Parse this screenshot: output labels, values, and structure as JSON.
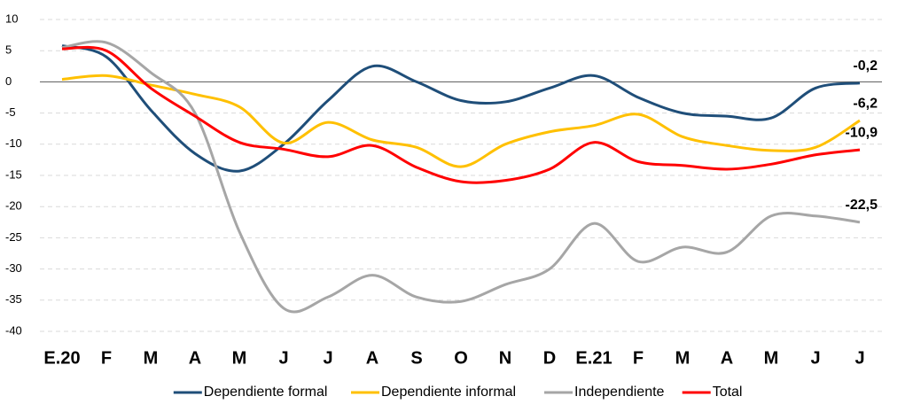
{
  "chart_data": {
    "type": "line",
    "categories": [
      "E.20",
      "F",
      "M",
      "A",
      "M",
      "J",
      "J",
      "A",
      "S",
      "O",
      "N",
      "D",
      "E.21",
      "F",
      "M",
      "A",
      "M",
      "J",
      "J"
    ],
    "series": [
      {
        "name": "Dependiente formal",
        "color": "#1f4e79",
        "values": [
          5.8,
          4,
          -4.5,
          -11.5,
          -14.3,
          -10,
          -3,
          2.5,
          0,
          -3,
          -3.2,
          -1,
          1,
          -2.5,
          -5,
          -5.5,
          -5.8,
          -1,
          -0.2
        ],
        "value_labels": [
          null,
          null,
          null,
          null,
          null,
          null,
          null,
          null,
          null,
          null,
          null,
          null,
          null,
          null,
          null,
          null,
          null,
          null,
          "-0,2"
        ]
      },
      {
        "name": "Dependiente informal",
        "color": "#ffc000",
        "values": [
          0.4,
          1,
          -0.5,
          -2,
          -4,
          -9.8,
          -6.5,
          -9.3,
          -10.5,
          -13.6,
          -10,
          -8,
          -7,
          -5.2,
          -8.8,
          -10.2,
          -11,
          -10.5,
          -6.2
        ],
        "value_labels": [
          null,
          null,
          null,
          null,
          null,
          null,
          null,
          null,
          null,
          null,
          null,
          null,
          null,
          null,
          null,
          null,
          null,
          null,
          "-6,2"
        ]
      },
      {
        "name": "Independiente",
        "color": "#a6a6a6",
        "values": [
          5.5,
          6.3,
          1.5,
          -5,
          -24,
          -36.3,
          -34.5,
          -31,
          -34.5,
          -35.2,
          -32.5,
          -30,
          -22.7,
          -28.8,
          -26.5,
          -27.3,
          -21.5,
          -21.5,
          -22.5
        ],
        "value_labels": [
          null,
          null,
          null,
          null,
          null,
          null,
          null,
          null,
          null,
          null,
          null,
          null,
          null,
          null,
          null,
          null,
          null,
          null,
          "-22,5"
        ]
      },
      {
        "name": "Total",
        "color": "#ff0000",
        "values": [
          5.3,
          5,
          -1,
          -5.5,
          -9.7,
          -10.8,
          -12,
          -10.2,
          -13.7,
          -16,
          -15.8,
          -14,
          -9.7,
          -12.8,
          -13.4,
          -14,
          -13.2,
          -11.7,
          -10.9
        ],
        "value_labels": [
          null,
          null,
          null,
          null,
          null,
          null,
          null,
          null,
          null,
          null,
          null,
          null,
          null,
          null,
          null,
          null,
          null,
          null,
          "-10,9"
        ]
      }
    ],
    "ylim": [
      -40,
      10
    ],
    "yticks": [
      -40,
      -35,
      -30,
      -25,
      -20,
      -15,
      -10,
      -5,
      0,
      5,
      10
    ],
    "grid": true,
    "legend": "bottom"
  }
}
